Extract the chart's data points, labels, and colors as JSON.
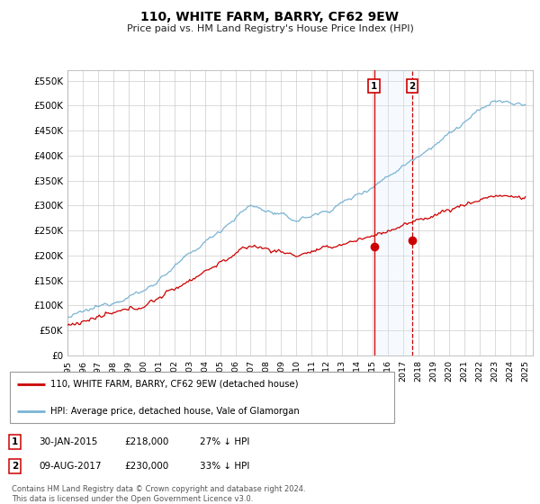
{
  "title": "110, WHITE FARM, BARRY, CF62 9EW",
  "subtitle": "Price paid vs. HM Land Registry's House Price Index (HPI)",
  "ylim": [
    0,
    570000
  ],
  "xlim_start": 1995.0,
  "xlim_end": 2025.5,
  "hpi_color": "#7ab3d4",
  "price_color": "#cc0000",
  "marker_color": "#cc0000",
  "sale1_x": 2015.08,
  "sale1_y": 218000,
  "sale1_label": "1",
  "sale1_date": "30-JAN-2015",
  "sale1_price": "£218,000",
  "sale1_hpi": "27% ↓ HPI",
  "sale2_x": 2017.6,
  "sale2_y": 230000,
  "sale2_label": "2",
  "sale2_date": "09-AUG-2017",
  "sale2_price": "£230,000",
  "sale2_hpi": "33% ↓ HPI",
  "legend_line1": "110, WHITE FARM, BARRY, CF62 9EW (detached house)",
  "legend_line2": "HPI: Average price, detached house, Vale of Glamorgan",
  "footer1": "Contains HM Land Registry data © Crown copyright and database right 2024.",
  "footer2": "This data is licensed under the Open Government Licence v3.0.",
  "background_color": "#ffffff",
  "grid_color": "#cccccc",
  "span_color": "#ddeeff"
}
